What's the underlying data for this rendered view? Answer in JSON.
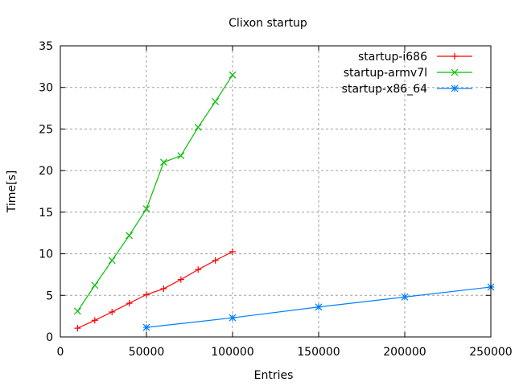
{
  "chart_data": {
    "type": "line",
    "title": "Clixon startup",
    "xlabel": "Entries",
    "ylabel": "Time[s]",
    "xlim": [
      0,
      250000
    ],
    "ylim": [
      0,
      35
    ],
    "xticks": [
      0,
      50000,
      100000,
      150000,
      200000,
      250000
    ],
    "yticks": [
      0,
      5,
      10,
      15,
      20,
      25,
      30,
      35
    ],
    "grid": true,
    "legend_position": "top-right",
    "series": [
      {
        "name": "startup-i686",
        "color": "#ff0000",
        "marker": "plus",
        "x": [
          10000,
          20000,
          30000,
          40000,
          50000,
          60000,
          70000,
          80000,
          90000,
          100000
        ],
        "y": [
          1.05,
          2.0,
          3.0,
          4.05,
          5.1,
          5.8,
          6.9,
          8.1,
          9.2,
          10.25
        ]
      },
      {
        "name": "startup-armv7l",
        "color": "#00c000",
        "marker": "cross",
        "x": [
          10000,
          20000,
          30000,
          40000,
          50000,
          60000,
          70000,
          80000,
          90000,
          100000
        ],
        "y": [
          3.1,
          6.2,
          9.2,
          12.2,
          15.4,
          21.0,
          21.8,
          25.2,
          28.3,
          31.5
        ]
      },
      {
        "name": "startup-x86_64",
        "color": "#0080ff",
        "marker": "star",
        "x": [
          50000,
          100000,
          150000,
          200000,
          250000
        ],
        "y": [
          1.15,
          2.3,
          3.6,
          4.8,
          6.0
        ]
      }
    ]
  }
}
